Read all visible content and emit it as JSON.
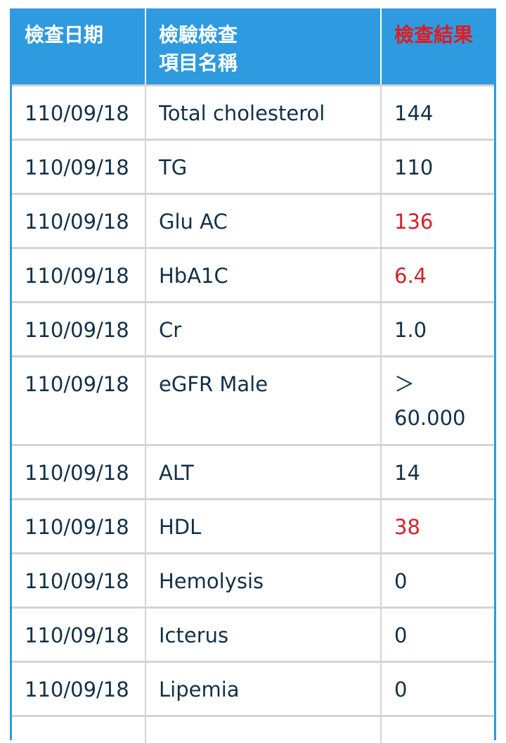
{
  "table": {
    "headers": {
      "date": "檢查日期",
      "item_line1": "檢驗檢查",
      "item_line2": "項目名稱",
      "result": "檢查結果"
    },
    "rows": [
      {
        "date": "110/09/18",
        "item": "Total cholesterol",
        "result": "144",
        "abnormal": false
      },
      {
        "date": "110/09/18",
        "item": "TG",
        "result": "110",
        "abnormal": false
      },
      {
        "date": "110/09/18",
        "item": "Glu AC",
        "result": "136",
        "abnormal": true
      },
      {
        "date": "110/09/18",
        "item": "HbA1C",
        "result": "6.4",
        "abnormal": true
      },
      {
        "date": "110/09/18",
        "item": "Cr",
        "result": "1.0",
        "abnormal": false
      },
      {
        "date": "110/09/18",
        "item": "eGFR Male",
        "result": "＞ 60.000",
        "abnormal": false
      },
      {
        "date": "110/09/18",
        "item": "ALT",
        "result": "14",
        "abnormal": false
      },
      {
        "date": "110/09/18",
        "item": "HDL",
        "result": "38",
        "abnormal": true
      },
      {
        "date": "110/09/18",
        "item": "Hemolysis",
        "result": "0",
        "abnormal": false
      },
      {
        "date": "110/09/18",
        "item": "Icterus",
        "result": "0",
        "abnormal": false
      },
      {
        "date": "110/09/18",
        "item": "Lipemia",
        "result": "0",
        "abnormal": false
      }
    ]
  },
  "colors": {
    "header_bg": "#2e9ae0",
    "header_text": "#ffffff",
    "result_header_text": "#e5191c",
    "cell_text": "#123047",
    "abnormal_text": "#d2212a",
    "grid": "#d4d4d4"
  }
}
